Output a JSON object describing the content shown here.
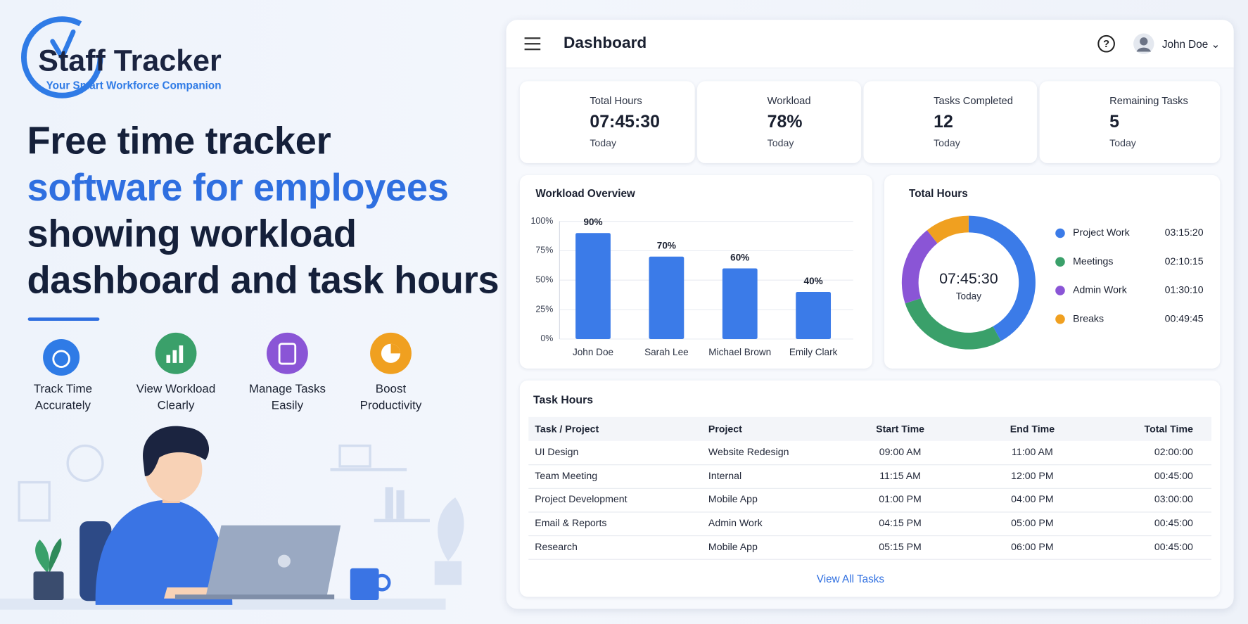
{
  "logo": {
    "name": "Staff Tracker",
    "tagline": "Your Smart Workforce Companion"
  },
  "headline": {
    "lines": [
      "Free time tracker",
      "software for employees",
      "showing workload",
      "dashboard and task hours"
    ]
  },
  "features": [
    {
      "label": "Track Time Accurately"
    },
    {
      "label": "View Workload Clearly"
    },
    {
      "label": "Manage Tasks Easily"
    },
    {
      "label": "Boost Productivity"
    }
  ],
  "header": {
    "title": "Dashboard",
    "user": "John Doe"
  },
  "stats": [
    {
      "label": "Total Hours",
      "value": "07:45:30",
      "period": "Today"
    },
    {
      "label": "Workload",
      "value": "78%",
      "period": "Today"
    },
    {
      "label": "Tasks Completed",
      "value": "12",
      "period": "Today"
    },
    {
      "label": "Remaining Tasks",
      "value": "5",
      "period": "Today"
    }
  ],
  "workload_chart": {
    "type": "bar",
    "title": "Workload Overview",
    "categories": [
      "John Doe",
      "Sarah Lee",
      "Michael Brown",
      "Emily Clark"
    ],
    "values": [
      90,
      70,
      60,
      40
    ],
    "value_labels": [
      "90%",
      "70%",
      "60%",
      "40%"
    ],
    "color": "#3b7be8",
    "ylim": [
      0,
      100
    ],
    "yticks": [
      {
        "value": 0,
        "label": "0%"
      },
      {
        "value": 25,
        "label": "25%"
      },
      {
        "value": 50,
        "label": "50%"
      },
      {
        "value": 75,
        "label": "75%"
      },
      {
        "value": 100,
        "label": "100%"
      }
    ],
    "grid": true
  },
  "hours_chart": {
    "type": "pie",
    "title": "Total Hours",
    "center_value": "07:45:30",
    "center_label": "Today",
    "categories": [
      "Project Work",
      "Meetings",
      "Admin Work",
      "Breaks"
    ],
    "values": [
      11720,
      7815,
      5410,
      2985
    ],
    "value_labels": [
      "03:15:20",
      "02:10:15",
      "01:30:10",
      "00:49:45"
    ],
    "colors": [
      "#3b7be8",
      "#3aa06a",
      "#8a55d6",
      "#f0a020"
    ]
  },
  "task_table": {
    "title": "Task Hours",
    "columns": [
      "Task / Project",
      "Project",
      "Start Time",
      "End Time",
      "Total Time"
    ],
    "rows": [
      [
        "UI Design",
        "Website Redesign",
        "09:00 AM",
        "11:00 AM",
        "02:00:00"
      ],
      [
        "Team Meeting",
        "Internal",
        "11:15 AM",
        "12:00 PM",
        "00:45:00"
      ],
      [
        "Project Development",
        "Mobile App",
        "01:00 PM",
        "04:00 PM",
        "03:00:00"
      ],
      [
        "Email & Reports",
        "Admin Work",
        "04:15 PM",
        "05:00 PM",
        "00:45:00"
      ],
      [
        "Research",
        "Mobile App",
        "05:15 PM",
        "06:00 PM",
        "00:45:00"
      ]
    ],
    "link": "View All Tasks"
  }
}
